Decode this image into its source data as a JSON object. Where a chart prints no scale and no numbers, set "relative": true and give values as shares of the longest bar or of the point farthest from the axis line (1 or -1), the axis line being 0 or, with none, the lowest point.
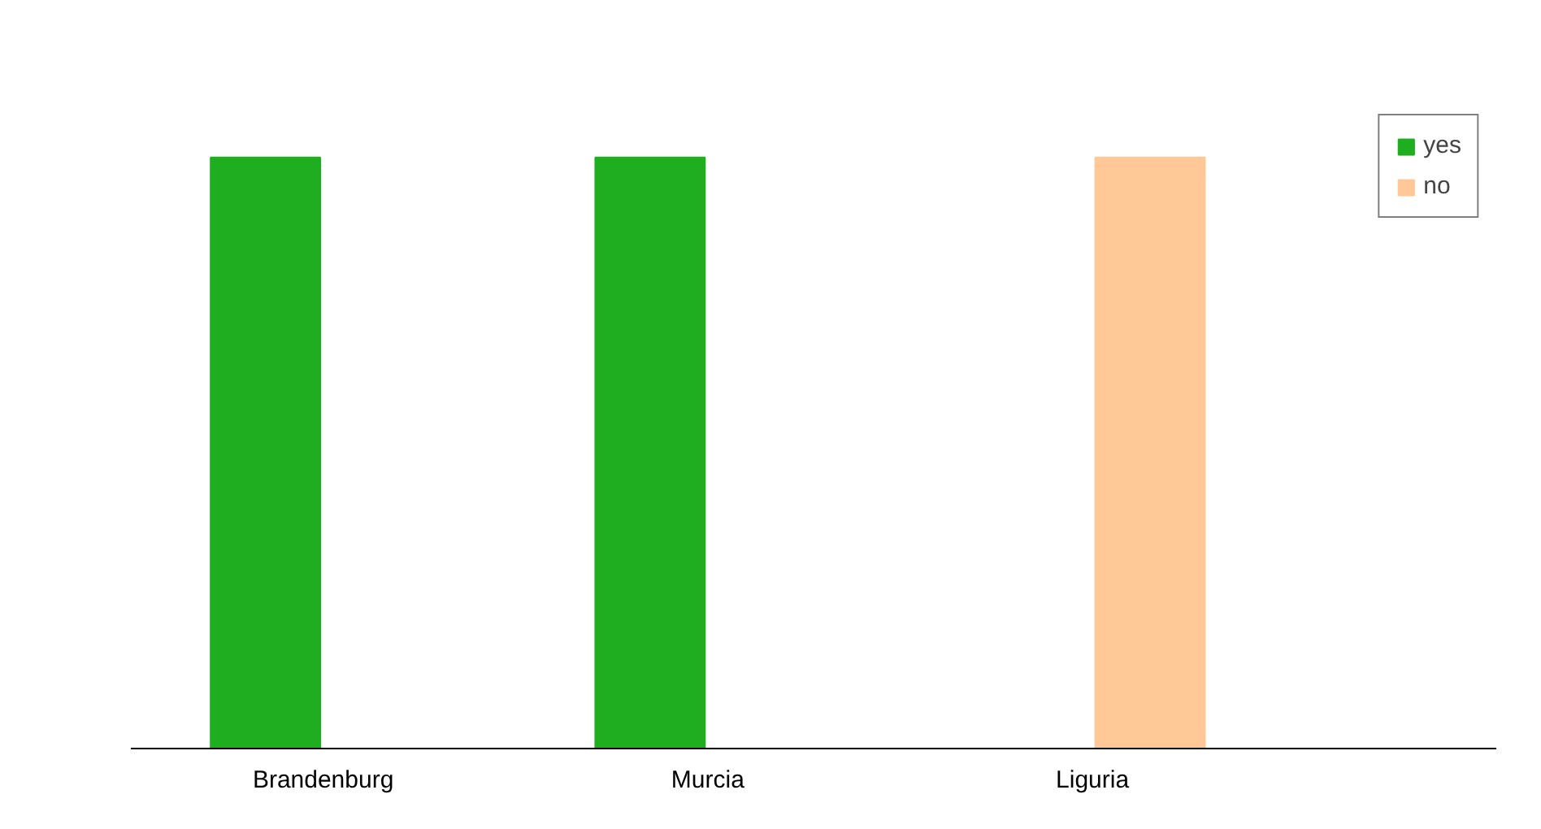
{
  "chart_data": {
    "type": "bar",
    "relative": true,
    "categories": [
      "Brandenburg",
      "Murcia",
      "Liguria"
    ],
    "series": [
      {
        "name": "yes",
        "color": "#1fae1f",
        "values": [
          1,
          1,
          0
        ]
      },
      {
        "name": "no",
        "color": "#ffc896",
        "values": [
          0,
          0,
          1
        ]
      }
    ],
    "legend": "top right",
    "grid": false
  }
}
